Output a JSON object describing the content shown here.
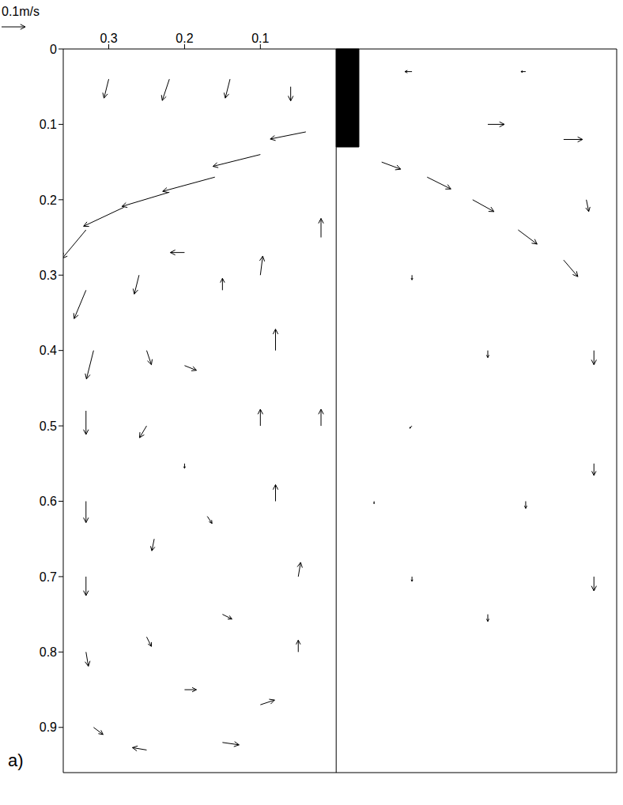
{
  "chart_data": {
    "type": "quiver",
    "xlim": [
      -0.37,
      0.36
    ],
    "xticks": [
      0.3,
      0.2,
      0.1
    ],
    "ylim": [
      0,
      0.96
    ],
    "yticks": [
      0,
      0.1,
      0.2,
      0.3,
      0.4,
      0.5,
      0.6,
      0.7,
      0.8,
      0.9
    ],
    "color": "#000000",
    "reference_arrow": {
      "label": "0.1m/s",
      "value": 0.1
    },
    "panel_label": "a)",
    "divider_x": 0,
    "impeller": {
      "x": [
        0,
        -0.03
      ],
      "y": [
        0,
        0.13
      ]
    },
    "arrows": {
      "x": [
        0.3,
        0.22,
        0.14,
        0.06,
        0.04,
        0.1,
        0.16,
        0.22,
        0.28,
        0.33,
        0.33,
        0.32,
        0.33,
        0.33,
        0.33,
        0.33,
        0.32,
        0.26,
        0.2,
        0.15,
        0.2,
        0.25,
        0.1,
        0.08,
        0.1,
        0.08,
        0.05,
        0.05,
        0.02,
        0.02,
        0.25,
        0.2,
        0.17,
        0.24,
        0.15,
        0.25,
        0.2,
        0.1,
        0.15,
        0.25,
        -0.06,
        -0.12,
        -0.18,
        -0.24,
        -0.3,
        -0.2,
        -0.3,
        -0.1,
        -0.25,
        -0.34,
        -0.34,
        -0.34,
        -0.33,
        -0.1,
        -0.1,
        -0.2,
        -0.25,
        -0.1,
        -0.2,
        -0.05
      ],
      "y": [
        0.04,
        0.04,
        0.04,
        0.05,
        0.11,
        0.14,
        0.17,
        0.19,
        0.21,
        0.24,
        0.32,
        0.4,
        0.48,
        0.6,
        0.7,
        0.8,
        0.9,
        0.3,
        0.27,
        0.32,
        0.42,
        0.4,
        0.3,
        0.4,
        0.5,
        0.6,
        0.7,
        0.8,
        0.25,
        0.5,
        0.5,
        0.55,
        0.62,
        0.65,
        0.75,
        0.78,
        0.85,
        0.87,
        0.92,
        0.93,
        0.15,
        0.17,
        0.2,
        0.24,
        0.28,
        0.1,
        0.12,
        0.03,
        0.03,
        0.4,
        0.55,
        0.7,
        0.2,
        0.3,
        0.5,
        0.4,
        0.6,
        0.7,
        0.75,
        0.6
      ],
      "u": [
        0.02,
        0.03,
        0.02,
        0.0,
        0.15,
        0.2,
        0.22,
        0.2,
        0.17,
        0.1,
        0.05,
        0.03,
        0.0,
        0.0,
        0.0,
        -0.01,
        -0.04,
        0.02,
        0.06,
        0.0,
        -0.05,
        -0.02,
        -0.01,
        0.0,
        0.0,
        0.0,
        -0.01,
        0.0,
        0.0,
        0.0,
        0.03,
        0.0,
        -0.02,
        0.01,
        -0.04,
        -0.02,
        -0.05,
        -0.06,
        -0.07,
        0.06,
        -0.08,
        -0.1,
        -0.09,
        -0.08,
        -0.06,
        -0.07,
        -0.08,
        0.03,
        0.02,
        0.0,
        0.0,
        0.0,
        -0.01,
        0.0,
        0.01,
        0.0,
        0.0,
        0.0,
        0.0,
        0.0
      ],
      "v": [
        0.08,
        0.09,
        0.08,
        0.06,
        0.03,
        0.05,
        0.06,
        0.06,
        0.08,
        0.12,
        0.12,
        0.12,
        0.1,
        0.09,
        0.08,
        0.06,
        0.03,
        0.08,
        0.0,
        -0.05,
        0.02,
        0.06,
        -0.08,
        -0.09,
        -0.07,
        -0.07,
        -0.06,
        -0.05,
        -0.08,
        -0.07,
        0.05,
        0.02,
        0.03,
        0.05,
        0.02,
        0.04,
        0.0,
        -0.02,
        0.01,
        -0.01,
        0.03,
        0.05,
        0.05,
        0.06,
        0.07,
        0.0,
        0.0,
        0.0,
        0.0,
        0.06,
        0.05,
        0.06,
        0.05,
        0.02,
        0.01,
        0.03,
        0.03,
        0.02,
        0.03,
        0.01
      ]
    }
  }
}
